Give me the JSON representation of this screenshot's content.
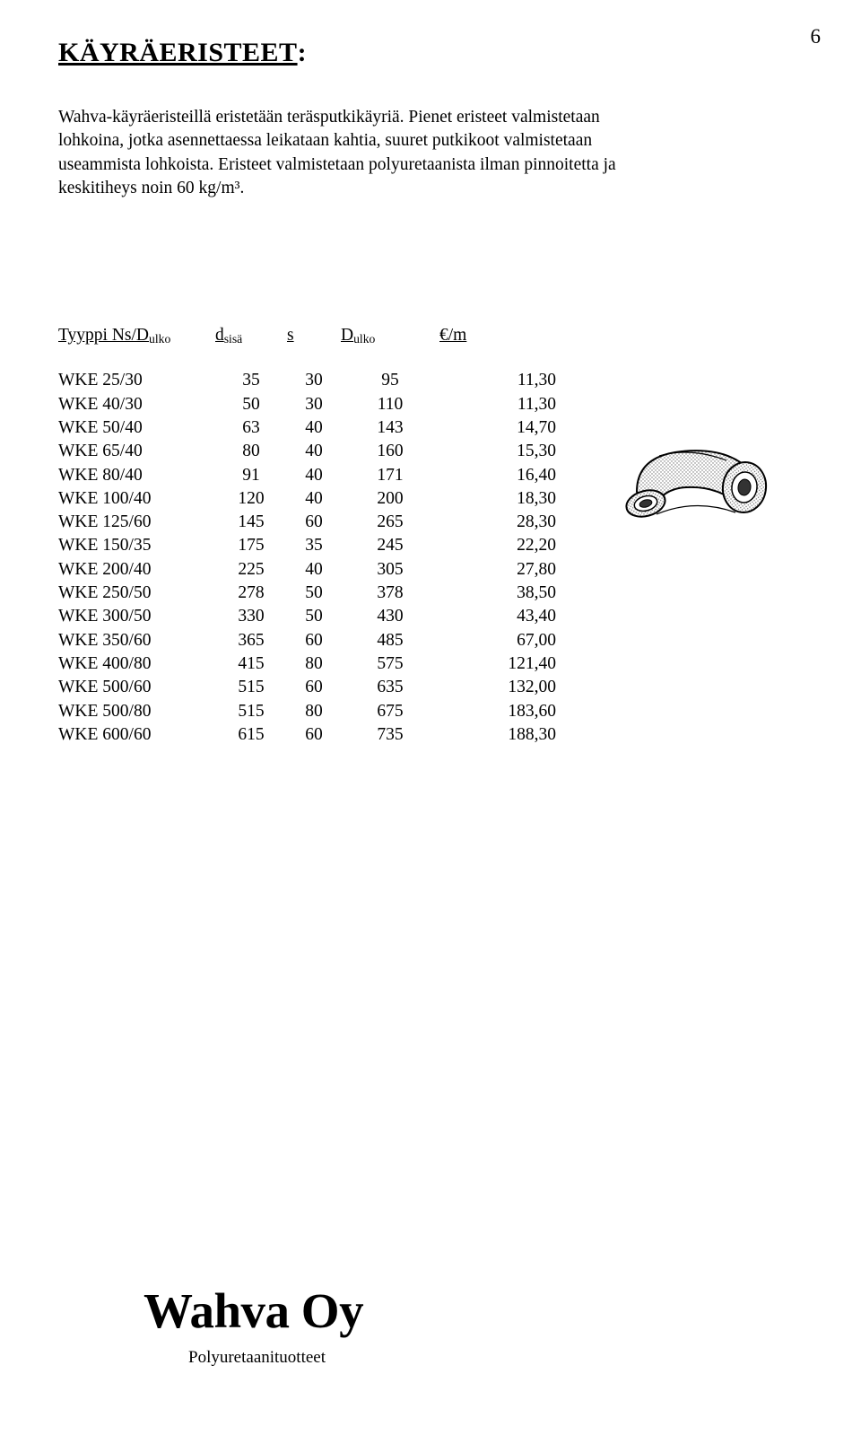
{
  "page_number": "6",
  "title": "KÄYRÄERISTEET",
  "intro": "Wahva-käyräeristeillä eristetään teräsputkikäyriä. Pienet eristeet valmistetaan lohkoina, jotka asennettaessa leikataan kahtia, suuret putkikoot valmistetaan useammista lohkoista. Eristeet valmistetaan polyuretaanista ilman pinnoitetta ja keskitiheys noin 60 kg/m³.",
  "columns": {
    "type_label": "Tyyppi Ns/D",
    "type_sub": "ulko",
    "d_label": "d",
    "d_sub": "sisä",
    "s_label": "s",
    "D_label": "D",
    "D_sub": "ulko",
    "eur_label": "€/m"
  },
  "rows": [
    {
      "type": "WKE 25/30",
      "d": "35",
      "s": "30",
      "D": "95",
      "eur": "11,30"
    },
    {
      "type": "WKE 40/30",
      "d": "50",
      "s": "30",
      "D": "110",
      "eur": "11,30"
    },
    {
      "type": "WKE 50/40",
      "d": "63",
      "s": "40",
      "D": "143",
      "eur": "14,70"
    },
    {
      "type": "WKE 65/40",
      "d": "80",
      "s": "40",
      "D": "160",
      "eur": "15,30"
    },
    {
      "type": "WKE 80/40",
      "d": "91",
      "s": "40",
      "D": "171",
      "eur": "16,40"
    },
    {
      "type": "WKE 100/40",
      "d": "120",
      "s": "40",
      "D": "200",
      "eur": "18,30"
    },
    {
      "type": "WKE 125/60",
      "d": "145",
      "s": "60",
      "D": "265",
      "eur": "28,30"
    },
    {
      "type": "WKE 150/35",
      "d": "175",
      "s": "35",
      "D": "245",
      "eur": "22,20"
    },
    {
      "type": "WKE 200/40",
      "d": "225",
      "s": "40",
      "D": "305",
      "eur": "27,80"
    },
    {
      "type": "WKE 250/50",
      "d": "278",
      "s": "50",
      "D": "378",
      "eur": "38,50"
    },
    {
      "type": "WKE 300/50",
      "d": "330",
      "s": "50",
      "D": "430",
      "eur": "43,40"
    },
    {
      "type": "WKE 350/60",
      "d": "365",
      "s": "60",
      "D": "485",
      "eur": "67,00"
    },
    {
      "type": "WKE 400/80",
      "d": "415",
      "s": "80",
      "D": "575",
      "eur": "121,40"
    },
    {
      "type": "WKE 500/60",
      "d": "515",
      "s": "60",
      "D": "635",
      "eur": "132,00"
    },
    {
      "type": "WKE 500/80",
      "d": "515",
      "s": "80",
      "D": "675",
      "eur": "183,60"
    },
    {
      "type": "WKE 600/60",
      "d": "615",
      "s": "60",
      "D": "735",
      "eur": "188,30"
    }
  ],
  "footer": {
    "company": "Wahva Oy",
    "tagline": "Polyuretaanituotteet"
  },
  "illustration": {
    "stroke": "#000000",
    "fill_light": "#ffffff",
    "pattern_color": "#808080"
  }
}
